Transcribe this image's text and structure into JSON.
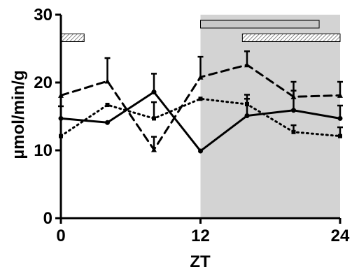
{
  "chart_data": {
    "type": "line",
    "title": "",
    "xlabel": "ZT",
    "ylabel": "µmol/min/g",
    "xlim": [
      0,
      24
    ],
    "ylim": [
      0,
      30
    ],
    "xticks": [
      0,
      12,
      24
    ],
    "yticks": [
      0,
      10,
      20,
      30
    ],
    "grid": false,
    "shaded_region": {
      "x_start": 12,
      "x_end": 24,
      "color": "#d3d3d3"
    },
    "bars_above": [
      {
        "x_start": 0,
        "x_end": 2,
        "y": 26.6,
        "fill": "hatched"
      },
      {
        "x_start": 12,
        "x_end": 22.2,
        "y": 28.6,
        "fill": "#c8c8c8"
      },
      {
        "x_start": 15.6,
        "x_end": 24,
        "y": 26.6,
        "fill": "hatched"
      }
    ],
    "series": [
      {
        "style": "solid",
        "color": "#000000",
        "x": [
          0,
          4,
          8,
          12,
          16,
          20,
          24
        ],
        "values": [
          14.7,
          14.1,
          18.6,
          9.9,
          15.1,
          15.9,
          14.7
        ],
        "errors": [
          1.8,
          0.0,
          2.7,
          0.0,
          2.5,
          2.9,
          1.9
        ]
      },
      {
        "style": "dashed",
        "color": "#000000",
        "x": [
          0,
          4,
          8,
          12,
          16,
          20,
          24
        ],
        "values": [
          18.1,
          20.2,
          10.1,
          20.8,
          22.6,
          17.9,
          18.1
        ],
        "errors": [
          0.0,
          3.4,
          1.9,
          3.0,
          2.0,
          2.2,
          2.0
        ]
      },
      {
        "style": "dotted",
        "color": "#000000",
        "x": [
          0,
          4,
          8,
          12,
          16,
          20,
          24
        ],
        "values": [
          12.1,
          16.7,
          14.7,
          17.6,
          16.8,
          12.7,
          12.1
        ],
        "errors": [
          0.0,
          0.0,
          2.4,
          0.0,
          1.4,
          1.0,
          1.3
        ]
      }
    ]
  }
}
